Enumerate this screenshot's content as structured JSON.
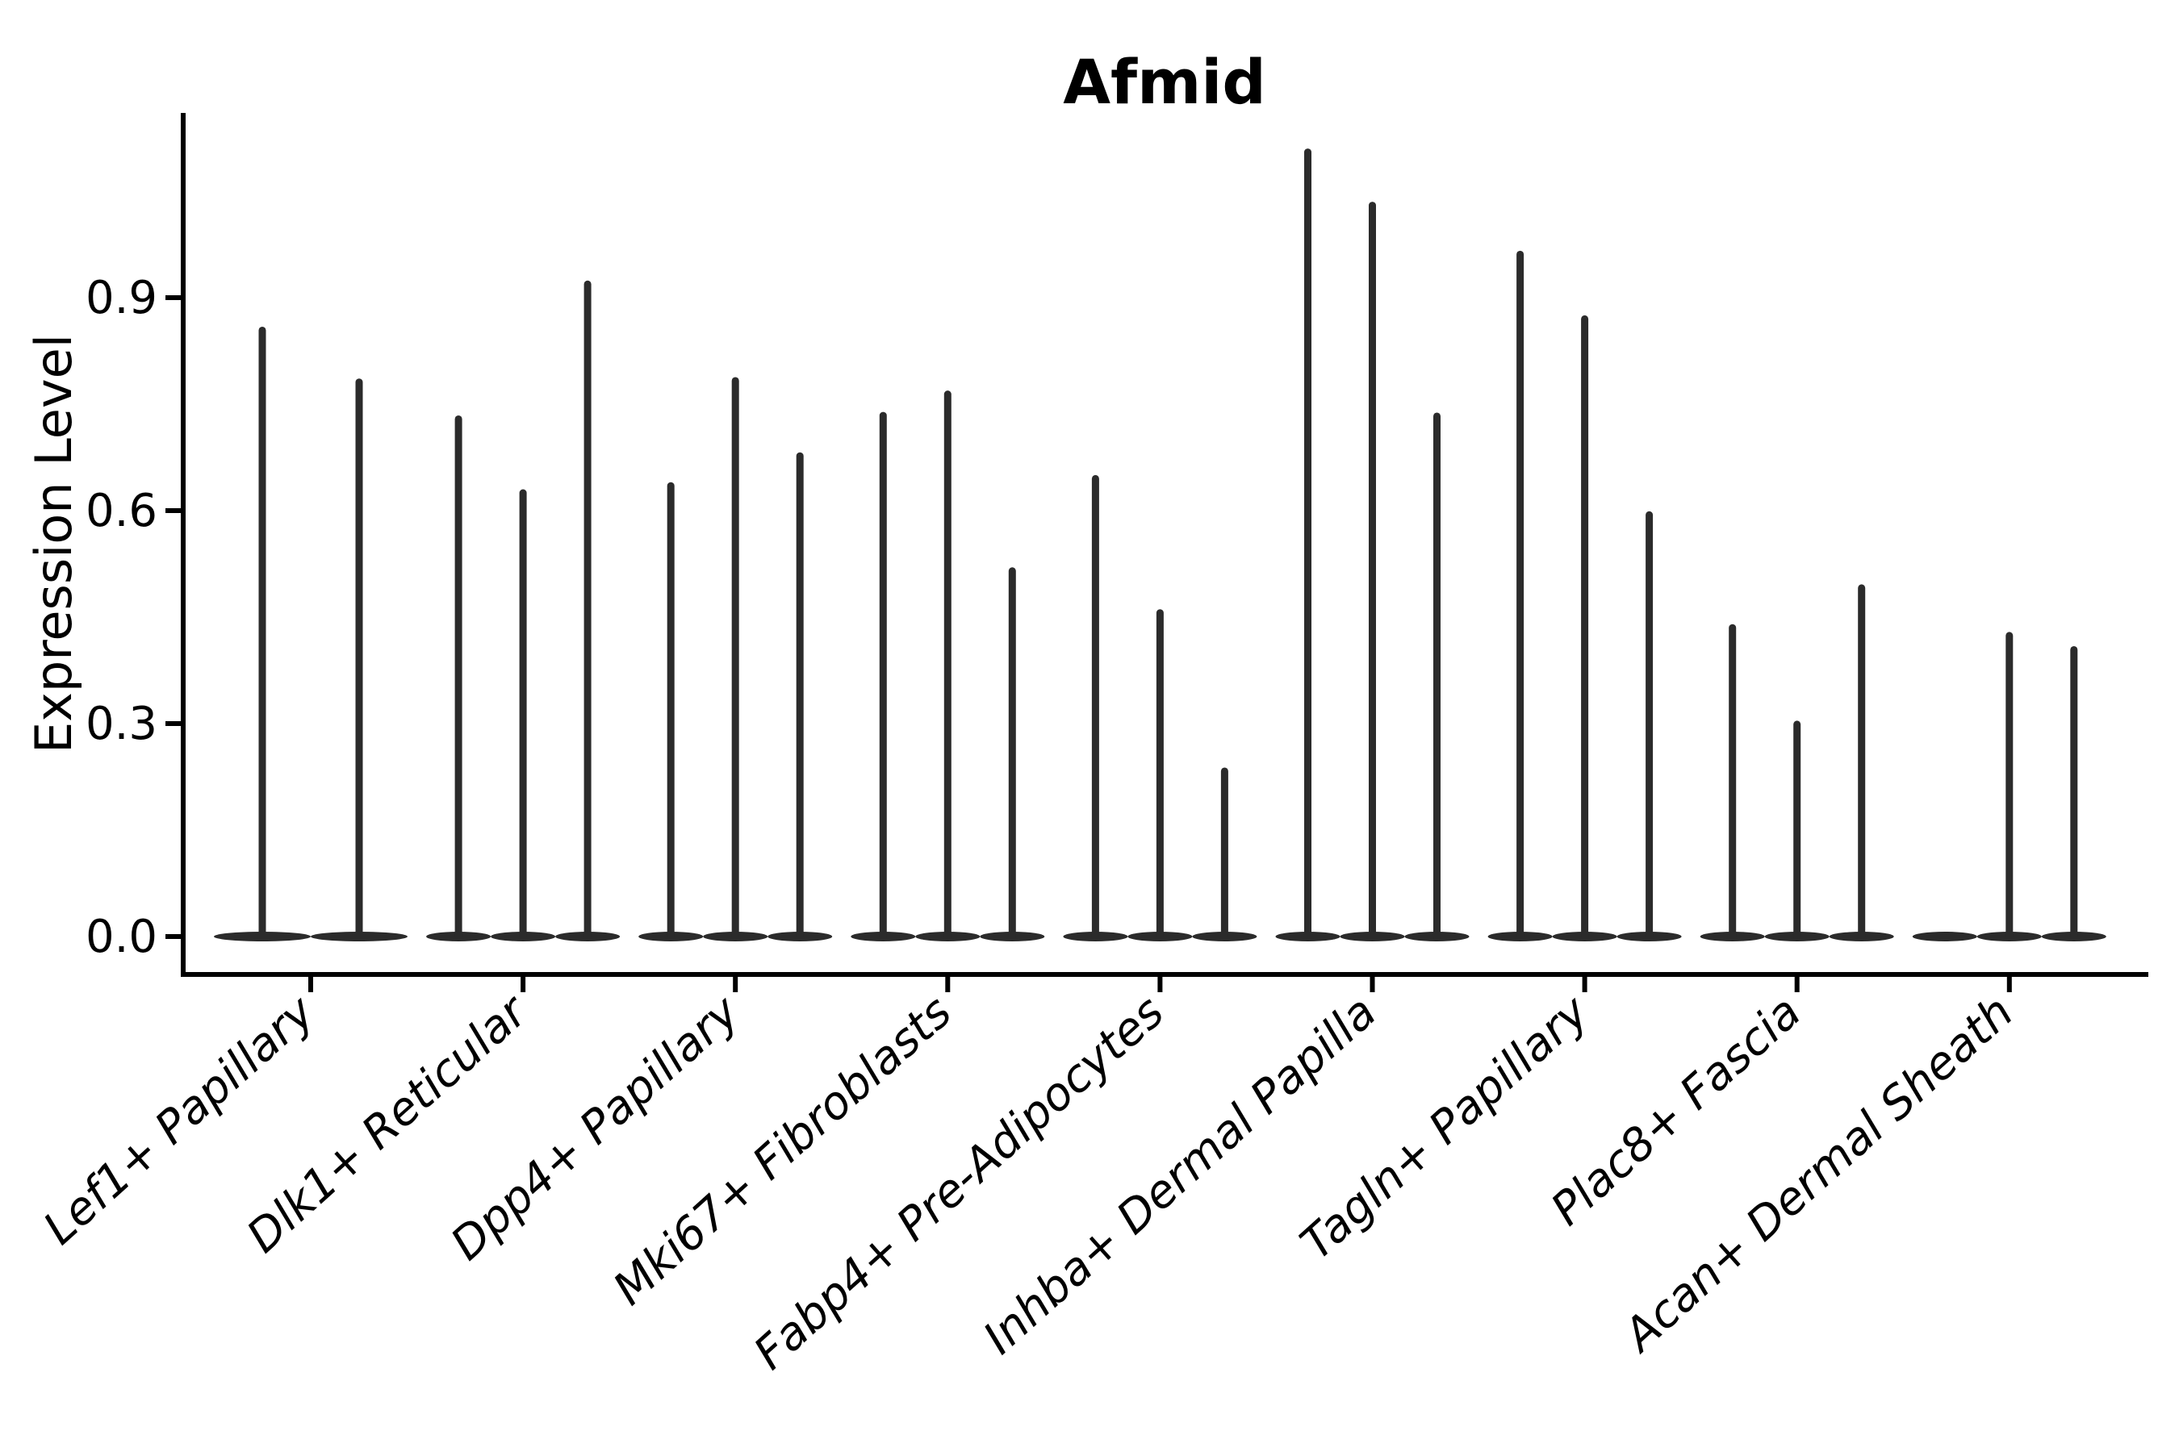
{
  "figure": {
    "title": "Afmid"
  },
  "chart_data": {
    "type": "violin",
    "title": "Afmid",
    "subtitle": "",
    "xlabel": "",
    "ylabel": "Expression Level",
    "grid": false,
    "legend": null,
    "ylim": [
      -0.053,
      1.16
    ],
    "ytick_values": [
      0.0,
      0.3,
      0.6,
      0.9
    ],
    "ytick_labels": [
      "0.0",
      "0.3",
      "0.6",
      "0.9"
    ],
    "categories": [
      "Lef1+ Papillary",
      "Dlk1+ Reticular",
      "Dpp4+ Papillary",
      "Mki67+ Fibroblasts",
      "Fabp4+ Pre-Adipocytes",
      "Inhba+ Dermal Papilla",
      "Tagln+ Papillary",
      "Plac8+ Fascia",
      "Acan+ Dermal Sheath"
    ],
    "groups": [
      {
        "label": "Lef1+ Papillary",
        "violin_maxima": [
          0.854,
          0.781
        ]
      },
      {
        "label": "Dlk1+ Reticular",
        "violin_maxima": [
          0.729,
          0.625,
          0.919
        ]
      },
      {
        "label": "Dpp4+ Papillary",
        "violin_maxima": [
          0.635,
          0.783,
          0.677
        ]
      },
      {
        "label": "Mki67+ Fibroblasts",
        "violin_maxima": [
          0.734,
          0.764,
          0.515
        ]
      },
      {
        "label": "Fabp4+ Pre-Adipocytes",
        "violin_maxima": [
          0.645,
          0.456,
          0.233
        ]
      },
      {
        "label": "Inhba+ Dermal Papilla",
        "violin_maxima": [
          1.105,
          1.03,
          0.733
        ]
      },
      {
        "label": "Tagln+ Papillary",
        "violin_maxima": [
          0.961,
          0.87,
          0.594
        ]
      },
      {
        "label": "Plac8+ Fascia",
        "violin_maxima": [
          0.435,
          0.299,
          0.491
        ]
      },
      {
        "label": "Acan+ Dermal Sheath",
        "violin_maxima": [
          0.0,
          0.424,
          0.404
        ]
      }
    ],
    "colors": {
      "violin": "#2b2b2b",
      "axis": "#000000",
      "text": "#000000",
      "background": "#ffffff"
    }
  }
}
